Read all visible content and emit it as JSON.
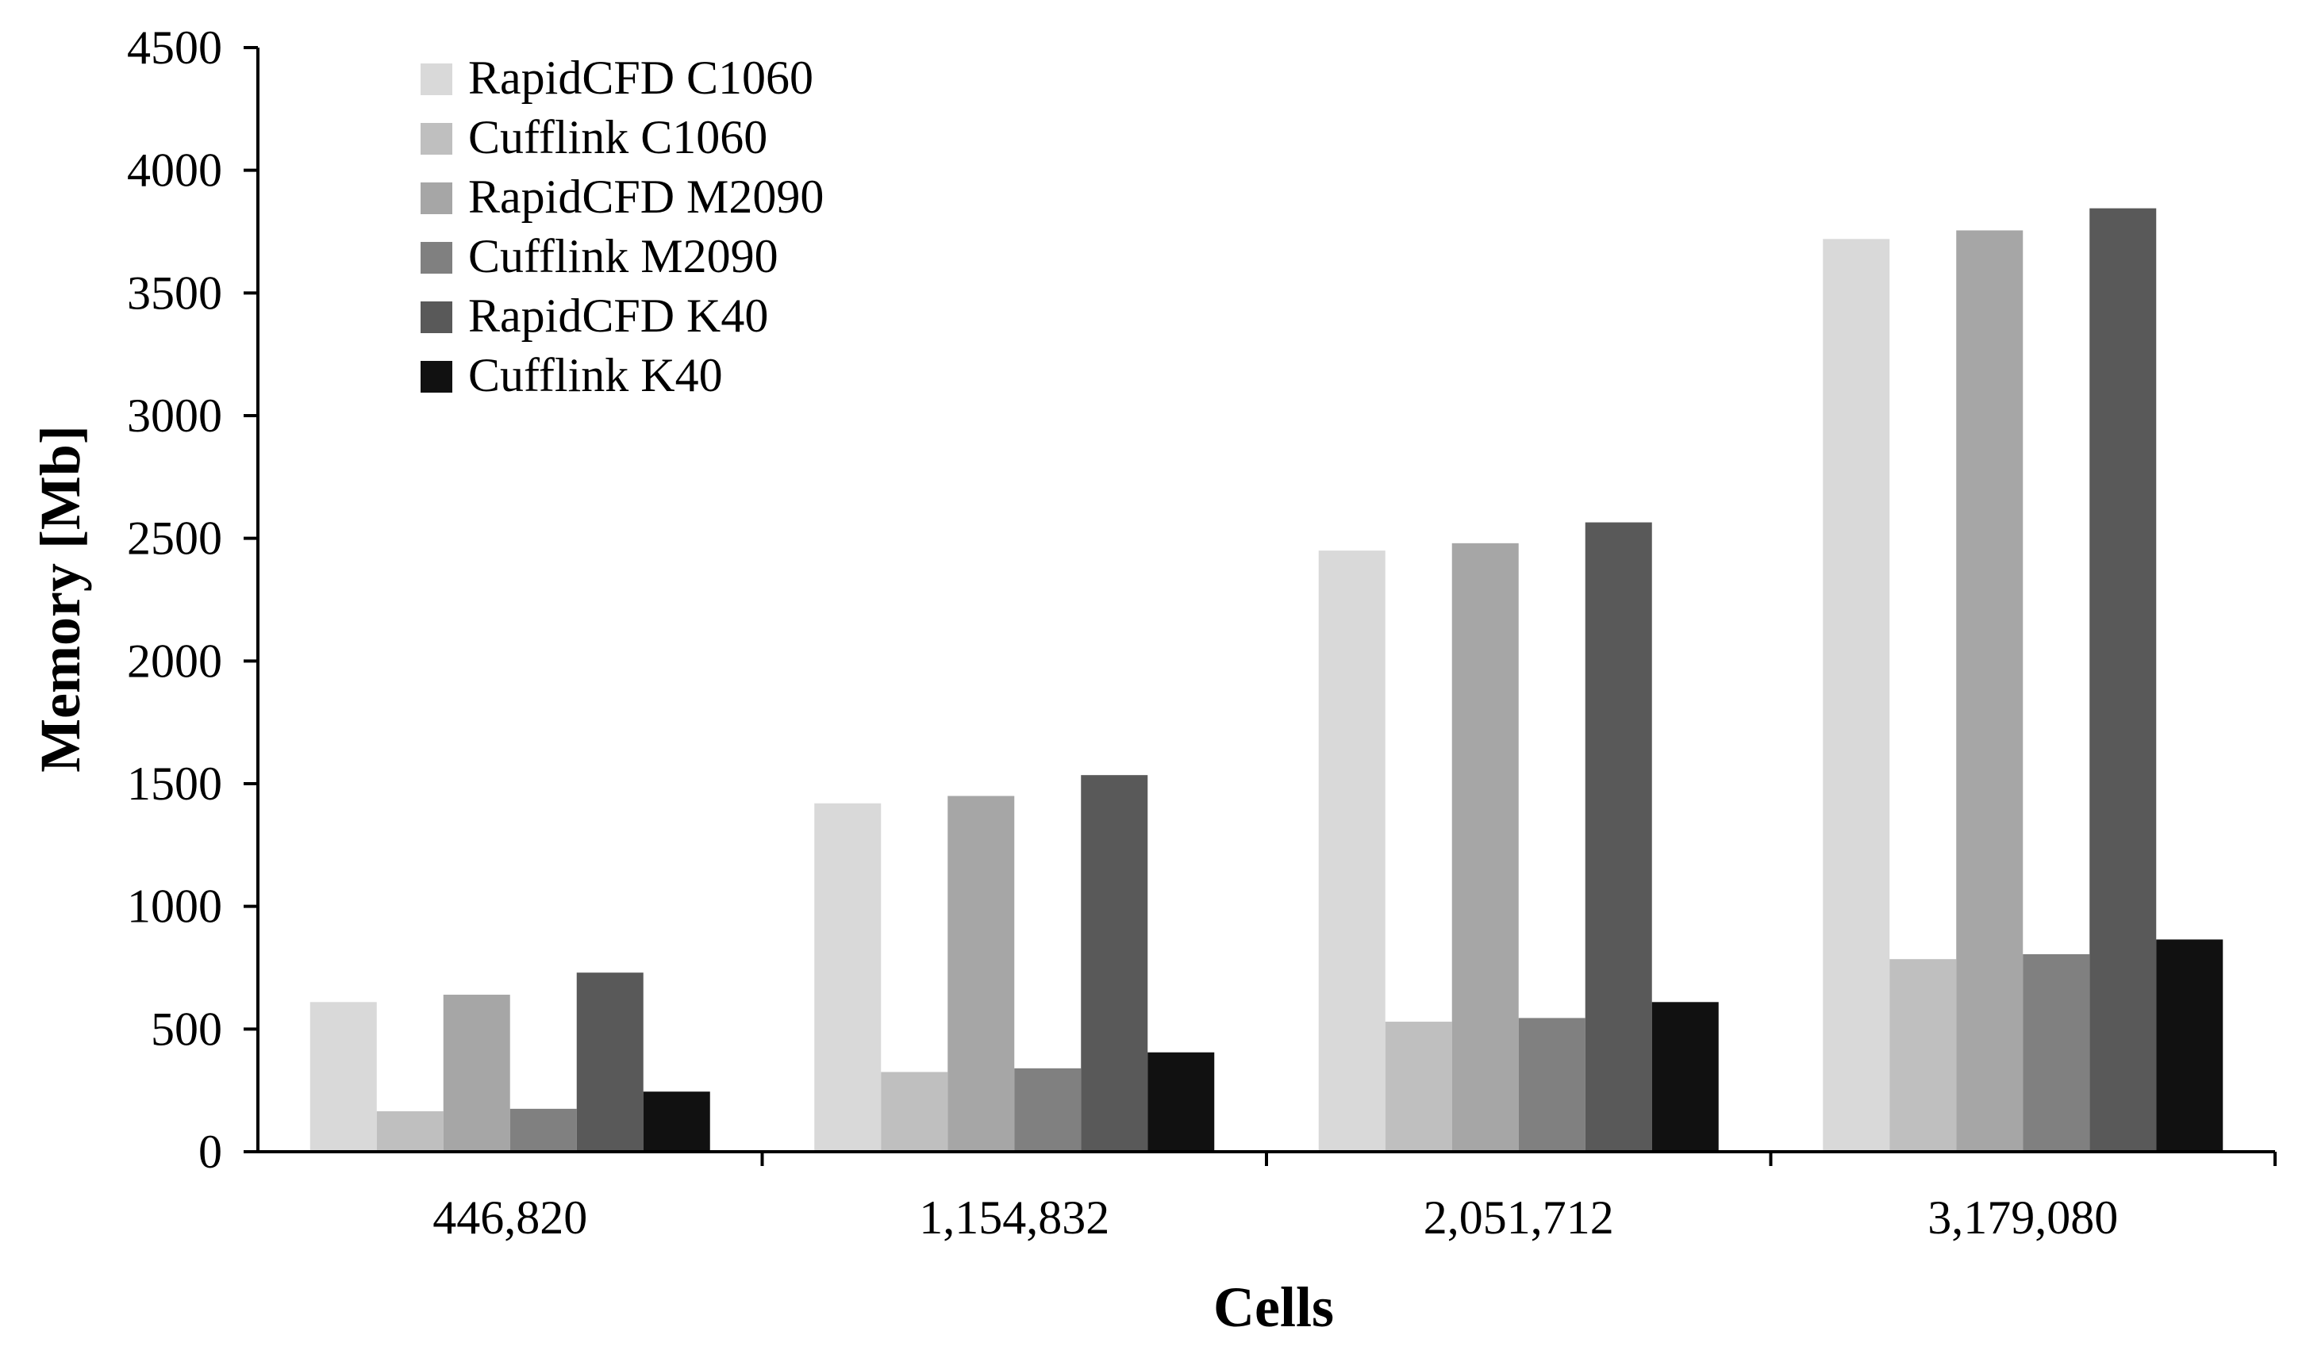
{
  "chart_data": {
    "type": "bar",
    "title": "",
    "xlabel": "Cells",
    "ylabel": "Memory [Mb]",
    "categories": [
      "446,820",
      "1,154,832",
      "2,051,712",
      "3,179,080"
    ],
    "ylim": [
      0,
      4500
    ],
    "yticks": [
      0,
      500,
      1000,
      1500,
      2000,
      2500,
      3000,
      3500,
      4000,
      4500
    ],
    "grid": false,
    "legend_position": "top-left",
    "series": [
      {
        "name": "RapidCFD C1060",
        "color": "#d9d9d9",
        "values": [
          610,
          1420,
          2450,
          3720
        ]
      },
      {
        "name": "Cufflink C1060",
        "color": "#bfbfbf",
        "values": [
          165,
          325,
          530,
          785
        ]
      },
      {
        "name": "RapidCFD M2090",
        "color": "#a6a6a6",
        "values": [
          640,
          1450,
          2480,
          3755
        ]
      },
      {
        "name": "Cufflink M2090",
        "color": "#808080",
        "values": [
          175,
          340,
          545,
          805
        ]
      },
      {
        "name": "RapidCFD K40",
        "color": "#595959",
        "values": [
          730,
          1535,
          2565,
          3845
        ]
      },
      {
        "name": "Cufflink K40",
        "color": "#111111",
        "values": [
          245,
          405,
          610,
          865
        ]
      }
    ]
  }
}
